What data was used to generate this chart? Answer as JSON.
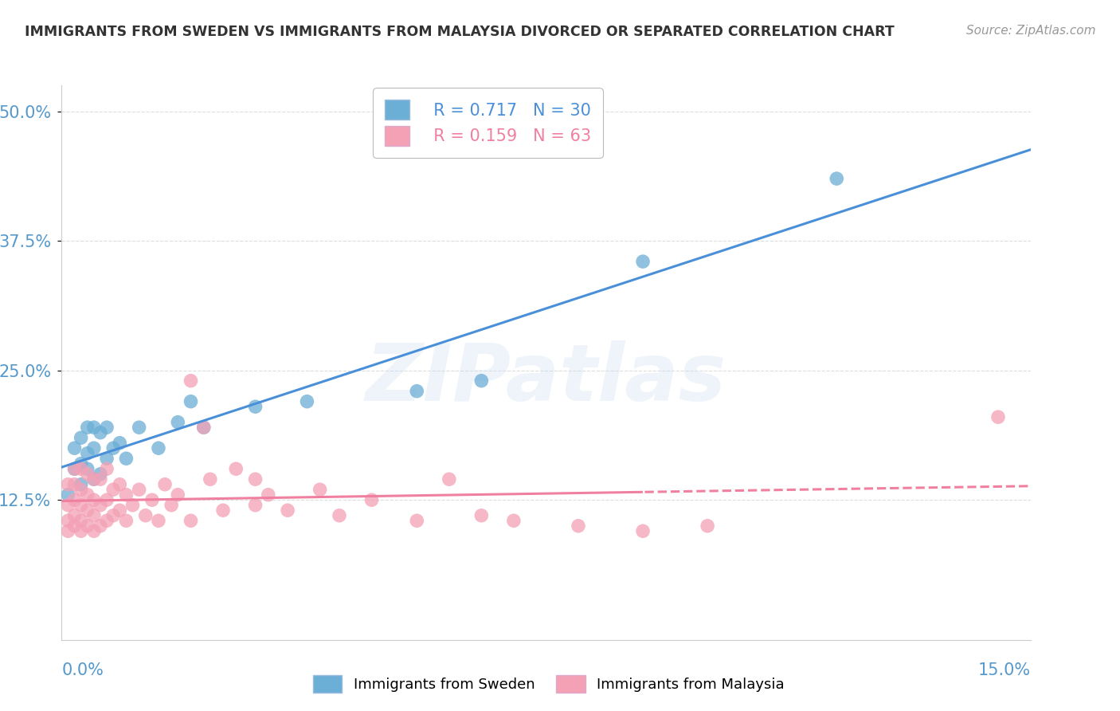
{
  "title": "IMMIGRANTS FROM SWEDEN VS IMMIGRANTS FROM MALAYSIA DIVORCED OR SEPARATED CORRELATION CHART",
  "source": "Source: ZipAtlas.com",
  "xmin": 0.0,
  "xmax": 0.15,
  "ymin": -0.01,
  "ymax": 0.525,
  "sweden_color": "#6baed6",
  "malaysia_color": "#f4a0b5",
  "sweden_line_color": "#4a90d9",
  "malaysia_line_color": "#f080a0",
  "sweden_R": 0.717,
  "sweden_N": 30,
  "malaysia_R": 0.159,
  "malaysia_N": 63,
  "legend_label_sweden": "Immigrants from Sweden",
  "legend_label_malaysia": "Immigrants from Malaysia",
  "watermark": "ZIPatlas",
  "yticks": [
    0.0,
    0.125,
    0.25,
    0.375,
    0.5
  ],
  "ytick_labels": [
    "",
    "12.5%",
    "25.0%",
    "37.5%",
    "50.0%"
  ],
  "sweden_scatter_x": [
    0.001,
    0.002,
    0.002,
    0.003,
    0.003,
    0.003,
    0.004,
    0.004,
    0.004,
    0.005,
    0.005,
    0.005,
    0.006,
    0.006,
    0.007,
    0.007,
    0.008,
    0.009,
    0.01,
    0.012,
    0.015,
    0.018,
    0.02,
    0.022,
    0.03,
    0.038,
    0.055,
    0.065,
    0.09,
    0.12
  ],
  "sweden_scatter_y": [
    0.13,
    0.155,
    0.175,
    0.14,
    0.16,
    0.185,
    0.155,
    0.17,
    0.195,
    0.145,
    0.175,
    0.195,
    0.15,
    0.19,
    0.165,
    0.195,
    0.175,
    0.18,
    0.165,
    0.195,
    0.175,
    0.2,
    0.22,
    0.195,
    0.215,
    0.22,
    0.23,
    0.24,
    0.355,
    0.435
  ],
  "malaysia_scatter_x": [
    0.001,
    0.001,
    0.001,
    0.001,
    0.002,
    0.002,
    0.002,
    0.002,
    0.002,
    0.003,
    0.003,
    0.003,
    0.003,
    0.003,
    0.004,
    0.004,
    0.004,
    0.004,
    0.005,
    0.005,
    0.005,
    0.005,
    0.006,
    0.006,
    0.006,
    0.007,
    0.007,
    0.007,
    0.008,
    0.008,
    0.009,
    0.009,
    0.01,
    0.01,
    0.011,
    0.012,
    0.013,
    0.014,
    0.015,
    0.016,
    0.017,
    0.018,
    0.02,
    0.02,
    0.022,
    0.023,
    0.025,
    0.027,
    0.03,
    0.03,
    0.032,
    0.035,
    0.04,
    0.043,
    0.048,
    0.055,
    0.06,
    0.065,
    0.07,
    0.08,
    0.09,
    0.1,
    0.145
  ],
  "malaysia_scatter_y": [
    0.095,
    0.105,
    0.12,
    0.14,
    0.1,
    0.11,
    0.125,
    0.14,
    0.155,
    0.095,
    0.105,
    0.12,
    0.135,
    0.155,
    0.1,
    0.115,
    0.13,
    0.15,
    0.095,
    0.11,
    0.125,
    0.145,
    0.1,
    0.12,
    0.145,
    0.105,
    0.125,
    0.155,
    0.11,
    0.135,
    0.115,
    0.14,
    0.105,
    0.13,
    0.12,
    0.135,
    0.11,
    0.125,
    0.105,
    0.14,
    0.12,
    0.13,
    0.105,
    0.24,
    0.195,
    0.145,
    0.115,
    0.155,
    0.12,
    0.145,
    0.13,
    0.115,
    0.135,
    0.11,
    0.125,
    0.105,
    0.145,
    0.11,
    0.105,
    0.1,
    0.095,
    0.1,
    0.205
  ],
  "background_color": "#ffffff",
  "grid_color": "#dddddd",
  "title_color": "#333333",
  "tick_label_color": "#5599cc"
}
